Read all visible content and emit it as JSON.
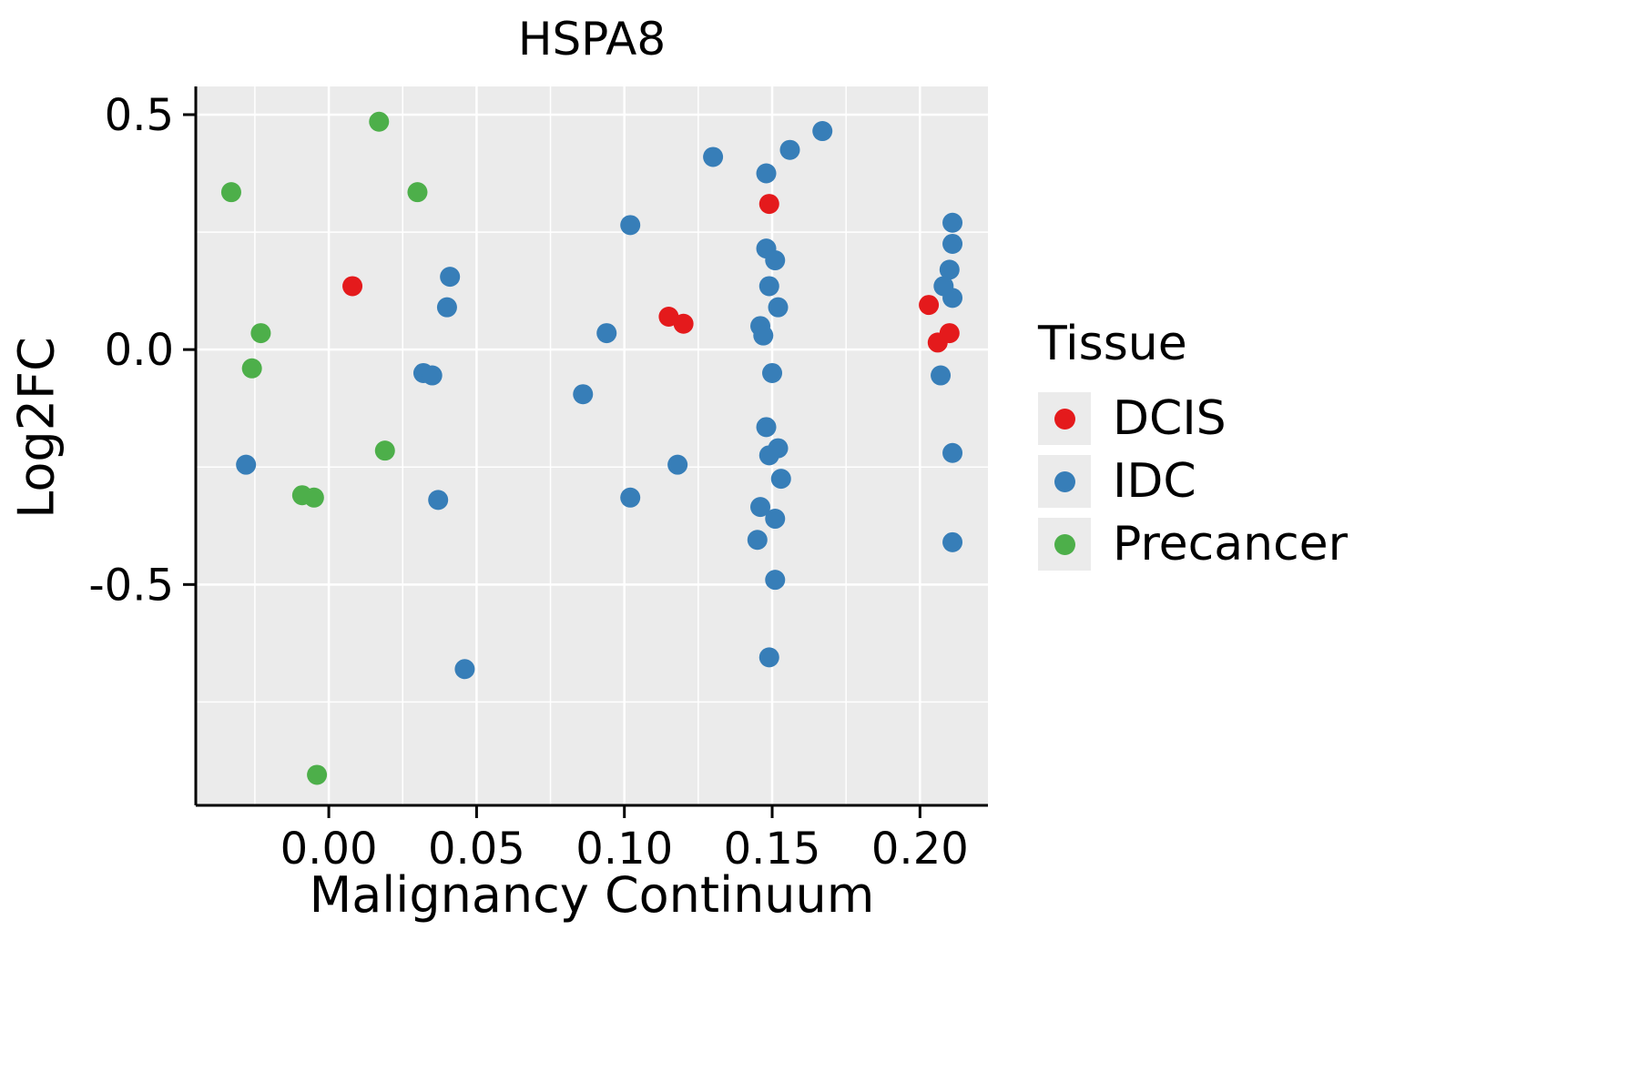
{
  "chart": {
    "title": "HSPA8",
    "xlabel": "Malignancy Continuum",
    "ylabel": "Log2FC",
    "legend_title": "Tissue"
  },
  "chart_data": {
    "type": "scatter",
    "title": "HSPA8",
    "xlabel": "Malignancy Continuum",
    "ylabel": "Log2FC",
    "xlim": [
      -0.045,
      0.223
    ],
    "ylim": [
      -0.97,
      0.56
    ],
    "x_ticks": [
      0.0,
      0.05,
      0.1,
      0.15,
      0.2
    ],
    "x_tick_labels": [
      "0.00",
      "0.05",
      "0.10",
      "0.15",
      "0.20"
    ],
    "y_ticks": [
      -0.5,
      0.0,
      0.5
    ],
    "y_tick_labels": [
      "-0.5",
      "0.0",
      "0.5"
    ],
    "x_minor": [
      -0.025,
      0.025,
      0.075,
      0.125,
      0.175
    ],
    "y_minor": [
      -0.75,
      -0.25,
      0.25
    ],
    "panel_bg": "#EBEBEB",
    "grid_color": "#FFFFFF",
    "point_radius": 11,
    "legend_position": "right",
    "series": [
      {
        "name": "DCIS",
        "color": "#E41A1C",
        "points": [
          [
            0.008,
            0.135
          ],
          [
            0.115,
            0.07
          ],
          [
            0.12,
            0.055
          ],
          [
            0.149,
            0.31
          ],
          [
            0.203,
            0.095
          ],
          [
            0.21,
            0.035
          ],
          [
            0.206,
            0.015
          ]
        ]
      },
      {
        "name": "IDC",
        "color": "#377EB8",
        "points": [
          [
            -0.028,
            -0.245
          ],
          [
            0.032,
            -0.05
          ],
          [
            0.035,
            -0.055
          ],
          [
            0.041,
            0.155
          ],
          [
            0.04,
            0.09
          ],
          [
            0.037,
            -0.32
          ],
          [
            0.046,
            -0.68
          ],
          [
            0.086,
            -0.095
          ],
          [
            0.094,
            0.035
          ],
          [
            0.102,
            0.265
          ],
          [
            0.102,
            -0.315
          ],
          [
            0.118,
            -0.245
          ],
          [
            0.13,
            0.41
          ],
          [
            0.148,
            0.375
          ],
          [
            0.156,
            0.425
          ],
          [
            0.167,
            0.465
          ],
          [
            0.148,
            0.215
          ],
          [
            0.151,
            0.19
          ],
          [
            0.149,
            0.135
          ],
          [
            0.152,
            0.09
          ],
          [
            0.146,
            0.05
          ],
          [
            0.147,
            0.03
          ],
          [
            0.15,
            -0.05
          ],
          [
            0.148,
            -0.165
          ],
          [
            0.152,
            -0.21
          ],
          [
            0.149,
            -0.225
          ],
          [
            0.153,
            -0.275
          ],
          [
            0.146,
            -0.335
          ],
          [
            0.151,
            -0.36
          ],
          [
            0.145,
            -0.405
          ],
          [
            0.151,
            -0.49
          ],
          [
            0.149,
            -0.655
          ],
          [
            0.211,
            0.27
          ],
          [
            0.211,
            0.225
          ],
          [
            0.21,
            0.17
          ],
          [
            0.208,
            0.135
          ],
          [
            0.211,
            0.11
          ],
          [
            0.207,
            -0.055
          ],
          [
            0.211,
            -0.22
          ],
          [
            0.211,
            -0.41
          ]
        ]
      },
      {
        "name": "Precancer",
        "color": "#4DAF4A",
        "points": [
          [
            -0.033,
            0.335
          ],
          [
            -0.023,
            0.035
          ],
          [
            -0.026,
            -0.04
          ],
          [
            -0.009,
            -0.31
          ],
          [
            -0.005,
            -0.315
          ],
          [
            0.017,
            0.485
          ],
          [
            0.03,
            0.335
          ],
          [
            0.019,
            -0.215
          ],
          [
            -0.004,
            -0.905
          ]
        ]
      }
    ]
  }
}
